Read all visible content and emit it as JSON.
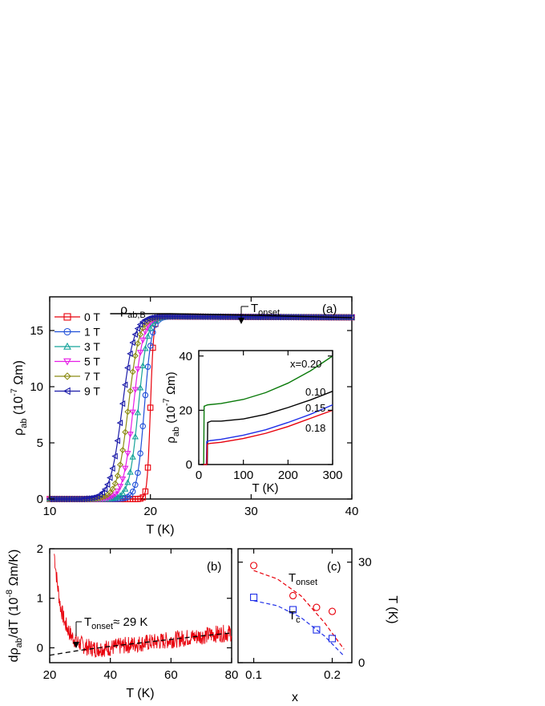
{
  "chart_data": [
    {
      "id": "a",
      "type": "line",
      "panel_label": "(a)",
      "xlabel": "T (K)",
      "ylabel": "ρab (10-7 Ωm)",
      "xlim": [
        10,
        40
      ],
      "ylim": [
        0,
        18
      ],
      "xticks": [
        10,
        20,
        30,
        40
      ],
      "yticks": [
        0,
        5,
        10,
        15
      ],
      "legend_position": "top-left",
      "series": [
        {
          "name": "0 T",
          "marker": "square",
          "color": "#e8000b",
          "Tc": 20.0,
          "width": 0.35
        },
        {
          "name": "1 T",
          "marker": "circle",
          "color": "#1f4fd8",
          "Tc": 19.4,
          "width": 0.8
        },
        {
          "name": "3 T",
          "marker": "triangle-up",
          "color": "#16a39a",
          "Tc": 18.8,
          "width": 1.0
        },
        {
          "name": "5 T",
          "marker": "triangle-down",
          "color": "#e61ee6",
          "Tc": 18.3,
          "width": 1.1
        },
        {
          "name": "7 T",
          "marker": "diamond",
          "color": "#8c8c14",
          "Tc": 17.8,
          "width": 1.2
        },
        {
          "name": "9 T",
          "marker": "triangle-left",
          "color": "#1a1aa8",
          "Tc": 17.2,
          "width": 1.3
        }
      ],
      "normal_state_label": "ρab,B",
      "normal_state_line": {
        "x": [
          16,
          22,
          25,
          30,
          35,
          40
        ],
        "y": [
          16.5,
          16.5,
          16.45,
          16.35,
          16.25,
          16.15
        ]
      },
      "onset_annotation": {
        "label": "Tonset",
        "x": 29
      },
      "inset": {
        "xlabel": "T (K)",
        "ylabel": "ρab (10-7 Ωm)",
        "xlim": [
          0,
          300
        ],
        "ylim": [
          0,
          42
        ],
        "xticks": [
          0,
          100,
          200,
          300
        ],
        "yticks": [
          0,
          20,
          40
        ],
        "series": [
          {
            "name": "x=0.20",
            "color": "#0a7a0a",
            "x": [
              12,
              20,
              50,
              100,
              150,
              200,
              250,
              300
            ],
            "y": [
              21.5,
              22,
              22.5,
              24,
              26.5,
              30,
              34.5,
              40
            ]
          },
          {
            "name": "0.10",
            "color": "#000000",
            "x": [
              20,
              28,
              50,
              100,
              150,
              200,
              250,
              300
            ],
            "y": [
              15.5,
              16,
              16,
              16.8,
              18.5,
              21,
              23.8,
              27
            ]
          },
          {
            "name": "0.15",
            "color": "#1f2fe8",
            "x": [
              18,
              25,
              50,
              100,
              150,
              200,
              250,
              300
            ],
            "y": [
              8.5,
              8.8,
              9.3,
              10.8,
              12.8,
              15.5,
              18.5,
              22
            ]
          },
          {
            "name": "0.18",
            "color": "#e8000b",
            "x": [
              19,
              25,
              50,
              100,
              150,
              200,
              250,
              300
            ],
            "y": [
              7.5,
              7.8,
              8.2,
              9.6,
              11.5,
              14,
              17,
              20
            ]
          }
        ]
      }
    },
    {
      "id": "b",
      "type": "line",
      "panel_label": "(b)",
      "xlabel": "T (K)",
      "ylabel": "dρab/dT (10-8 Ωm/K)",
      "xlim": [
        20,
        80
      ],
      "ylim": [
        -0.3,
        2.0
      ],
      "xticks": [
        20,
        40,
        60,
        80
      ],
      "yticks": [
        0,
        1,
        2
      ],
      "series": [
        {
          "name": "",
          "color": "#e8000b",
          "x": [
            21.5,
            22.5,
            23.5,
            25,
            27,
            29,
            32,
            35,
            40,
            45,
            50,
            55,
            60,
            65,
            70,
            75,
            80
          ],
          "y": [
            1.9,
            1.3,
            0.85,
            0.5,
            0.25,
            0.12,
            0.02,
            -0.02,
            0.0,
            0.05,
            0.09,
            0.12,
            0.16,
            0.2,
            0.24,
            0.28,
            0.3
          ]
        }
      ],
      "fit_line": {
        "x": [
          20,
          30,
          40,
          50,
          60,
          70,
          80
        ],
        "y": [
          -0.15,
          -0.05,
          0.03,
          0.1,
          0.17,
          0.24,
          0.3
        ]
      },
      "annotation": {
        "text": "≈ 29 K",
        "label": "Tonset",
        "x": 29
      }
    },
    {
      "id": "c",
      "type": "scatter",
      "panel_label": "(c)",
      "xlabel": "x",
      "ylabel": "T (K)",
      "xlim": [
        0.08,
        0.225
      ],
      "ylim": [
        0,
        34
      ],
      "xticks": [
        0.1,
        0.2
      ],
      "xtick_labels": [
        "0.1",
        "0.2"
      ],
      "yticks": [
        0,
        30
      ],
      "y_axis_side": "right",
      "series": [
        {
          "name": "Tonset",
          "marker": "circle",
          "color": "#e8000b",
          "x": [
            0.1,
            0.15,
            0.18,
            0.2
          ],
          "y": [
            29,
            20,
            16.5,
            15.3
          ],
          "fit": {
            "x": [
              0.1,
              0.13,
              0.16,
              0.19,
              0.215
            ],
            "y": [
              27.5,
              25,
              20,
              12,
              4
            ]
          }
        },
        {
          "name": "Tc",
          "marker": "square",
          "color": "#1f2fe8",
          "x": [
            0.1,
            0.15,
            0.18,
            0.2
          ],
          "y": [
            19.5,
            15.8,
            9.8,
            7.2
          ],
          "fit": {
            "x": [
              0.1,
              0.13,
              0.16,
              0.19,
              0.215
            ],
            "y": [
              18.5,
              17,
              13.5,
              8,
              2
            ]
          }
        }
      ]
    }
  ]
}
